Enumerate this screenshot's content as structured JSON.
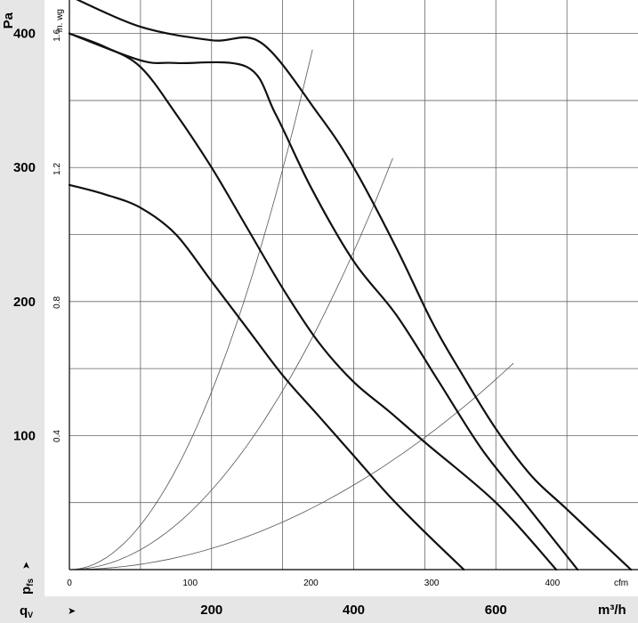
{
  "chart_data": {
    "type": "line",
    "y_label_primary": "Pa",
    "y_label_secondary": "in. wg",
    "y_axis_symbol_main": "p",
    "y_axis_symbol_sub": "fs",
    "x_label_primary": "m³/h",
    "x_label_secondary": "cfm",
    "x_axis_symbol_main": "q",
    "x_axis_symbol_sub": "V",
    "arrow_glyph": "➤",
    "xlim_m3h": [
      0,
      800
    ],
    "ylim_pa": [
      0,
      425
    ],
    "y_ticks_pa": [
      "100",
      "200",
      "300",
      "400"
    ],
    "y_ticks_inwg": [
      "0.4",
      "0.8",
      "1.2",
      "1.6"
    ],
    "x_ticks_m3h": [
      "200",
      "400",
      "600"
    ],
    "x_ticks_cfm": [
      "0",
      "100",
      "200",
      "300",
      "400"
    ],
    "x_ticks_cfm_values": [
      0,
      100,
      200,
      300,
      400
    ],
    "y_ticks_inwg_values": [
      0.4,
      0.8,
      1.2,
      1.6
    ],
    "grid": true,
    "series": [
      {
        "x": [
          0,
          100,
          200,
          270,
          350,
          400,
          460,
          510,
          550,
          600,
          650,
          700,
          790
        ],
        "y": [
          428,
          405,
          395,
          393,
          340,
          300,
          240,
          185,
          148,
          105,
          70,
          45,
          0
        ]
      },
      {
        "x": [
          0,
          100,
          150,
          250,
          290,
          340,
          400,
          460,
          520,
          580,
          640,
          715
        ],
        "y": [
          400,
          380,
          378,
          375,
          340,
          285,
          230,
          190,
          140,
          90,
          50,
          0
        ]
      },
      {
        "x": [
          0,
          50,
          100,
          150,
          200,
          250,
          300,
          350,
          400,
          450,
          500,
          600,
          685
        ],
        "y": [
          400,
          390,
          375,
          340,
          300,
          255,
          210,
          170,
          140,
          118,
          95,
          50,
          0
        ]
      },
      {
        "x": [
          0,
          50,
          100,
          150,
          200,
          250,
          300,
          350,
          400,
          450,
          500,
          555
        ],
        "y": [
          287,
          280,
          270,
          250,
          215,
          180,
          145,
          115,
          85,
          55,
          28,
          0
        ]
      }
    ],
    "system_curves": [
      {
        "x_end": 342,
        "y_end": 388
      },
      {
        "x_end": 455,
        "y_end": 307
      },
      {
        "x_end": 625,
        "y_end": 154
      }
    ]
  }
}
